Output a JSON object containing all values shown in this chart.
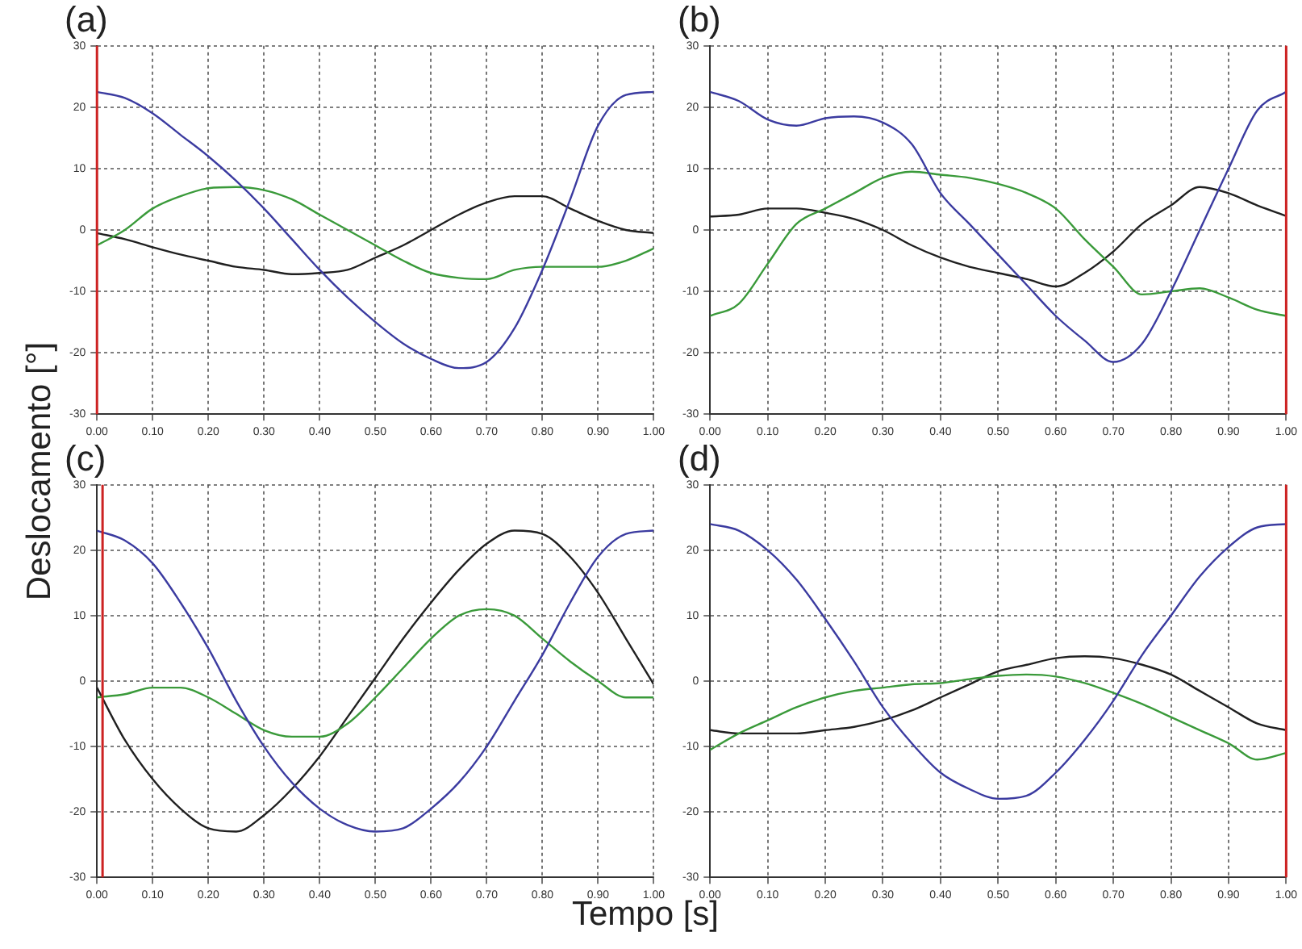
{
  "chart_data": [
    {
      "type": "line",
      "title": "(a)",
      "ylabel": "Deslocamento  [°]",
      "x": [
        0,
        0.05,
        0.1,
        0.15,
        0.2,
        0.25,
        0.3,
        0.35,
        0.4,
        0.45,
        0.5,
        0.55,
        0.6,
        0.65,
        0.7,
        0.75,
        0.8,
        0.85,
        0.9,
        0.95,
        1
      ],
      "series": [
        {
          "color": "#3b3ba0",
          "values": [
            22.5,
            21.5,
            19,
            15.5,
            12,
            8,
            3.5,
            -1.5,
            -6.5,
            -11,
            -15,
            -18.5,
            -21,
            -22.5,
            -21.5,
            -16,
            -6.5,
            5,
            17,
            22,
            22.5
          ]
        },
        {
          "color": "#3a9a3a",
          "values": [
            -2.5,
            0,
            3.5,
            5.5,
            6.8,
            7,
            6.5,
            5,
            2.5,
            0,
            -2.5,
            -5,
            -7,
            -7.8,
            -8,
            -6.5,
            -6,
            -6,
            -6,
            -5,
            -3
          ]
        },
        {
          "color": "#202020",
          "values": [
            -0.5,
            -1.5,
            -2.8,
            -4,
            -5,
            -6,
            -6.5,
            -7.2,
            -7,
            -6.5,
            -4.5,
            -2.5,
            0,
            2.5,
            4.5,
            5.5,
            5.5,
            3.5,
            1.5,
            0,
            -0.5
          ]
        }
      ],
      "xlim": [
        0,
        1
      ],
      "ylim": [
        -30,
        30
      ],
      "xticks": [
        {
          "value": 0,
          "label": "0.00"
        },
        {
          "value": 0.1,
          "label": "0.10"
        },
        {
          "value": 0.2,
          "label": "0.20"
        },
        {
          "value": 0.3,
          "label": "0.30"
        },
        {
          "value": 0.4,
          "label": "0.40"
        },
        {
          "value": 0.5,
          "label": "0.50"
        },
        {
          "value": 0.6,
          "label": "0.60"
        },
        {
          "value": 0.7,
          "label": "0.70"
        },
        {
          "value": 0.8,
          "label": "0.80"
        },
        {
          "value": 0.9,
          "label": "0.90"
        },
        {
          "value": 1,
          "label": "1.00"
        }
      ],
      "yticks": [
        -30,
        -20,
        -10,
        0,
        10,
        20,
        30
      ],
      "ref_lines": [
        {
          "axis": "x",
          "value": 0,
          "color": "#cc2222"
        }
      ],
      "grid": true,
      "legend": false,
      "marker": "none"
    },
    {
      "type": "line",
      "title": "(b)",
      "x": [
        0,
        0.05,
        0.1,
        0.15,
        0.2,
        0.25,
        0.3,
        0.35,
        0.4,
        0.45,
        0.5,
        0.55,
        0.6,
        0.65,
        0.7,
        0.75,
        0.8,
        0.85,
        0.9,
        0.95,
        1
      ],
      "series": [
        {
          "color": "#3b3ba0",
          "values": [
            22.5,
            21,
            18,
            17,
            18.2,
            18.5,
            17.5,
            14,
            6,
            1,
            -4,
            -9,
            -14,
            -18,
            -21.5,
            -18.5,
            -10,
            0,
            10,
            19.5,
            22.5
          ]
        },
        {
          "color": "#3a9a3a",
          "values": [
            -14,
            -12,
            -5.5,
            1,
            3.5,
            6,
            8.5,
            9.5,
            9,
            8.5,
            7.5,
            6,
            3.5,
            -1.5,
            -6,
            -10.5,
            -10,
            -9.5,
            -11,
            -13,
            -14
          ]
        },
        {
          "color": "#202020",
          "values": [
            2.2,
            2.5,
            3.5,
            3.5,
            2.8,
            1.8,
            0,
            -2.5,
            -4.5,
            -6,
            -7,
            -8,
            -9.2,
            -7,
            -3.5,
            1,
            4,
            7,
            6,
            4,
            2.3
          ]
        }
      ],
      "xlim": [
        0,
        1
      ],
      "ylim": [
        -30,
        30
      ],
      "xticks": [
        {
          "value": 0,
          "label": "0.00"
        },
        {
          "value": 0.1,
          "label": "0.10"
        },
        {
          "value": 0.2,
          "label": "0.20"
        },
        {
          "value": 0.3,
          "label": "0.30"
        },
        {
          "value": 0.4,
          "label": "0.40"
        },
        {
          "value": 0.5,
          "label": "0.50"
        },
        {
          "value": 0.6,
          "label": "0.60"
        },
        {
          "value": 0.7,
          "label": "0.70"
        },
        {
          "value": 0.8,
          "label": "0.80"
        },
        {
          "value": 0.9,
          "label": "0.90"
        },
        {
          "value": 1,
          "label": "1.00"
        }
      ],
      "yticks": [
        -30,
        -20,
        -10,
        0,
        10,
        20,
        30
      ],
      "ref_lines": [
        {
          "axis": "x",
          "value": 1,
          "color": "#cc2222"
        }
      ],
      "grid": true,
      "legend": false,
      "marker": "none"
    },
    {
      "type": "line",
      "title": "(c)",
      "xlabel": "Tempo [s]",
      "x": [
        0,
        0.05,
        0.1,
        0.15,
        0.2,
        0.25,
        0.3,
        0.35,
        0.4,
        0.45,
        0.5,
        0.55,
        0.6,
        0.65,
        0.7,
        0.75,
        0.8,
        0.85,
        0.9,
        0.95,
        1
      ],
      "series": [
        {
          "color": "#3b3ba0",
          "values": [
            23,
            21.5,
            18,
            12,
            5,
            -3,
            -10,
            -15.5,
            -19.5,
            -22,
            -23,
            -22.5,
            -19.5,
            -15.5,
            -10,
            -3,
            4,
            12,
            19,
            22.5,
            23
          ]
        },
        {
          "color": "#3a9a3a",
          "values": [
            -2.5,
            -2,
            -1,
            -1,
            -2.5,
            -5,
            -7.5,
            -8.5,
            -8.5,
            -6.5,
            -2.5,
            2,
            6.5,
            10,
            11,
            10,
            6.5,
            3,
            0,
            -2.5,
            -2.5
          ]
        },
        {
          "color": "#202020",
          "values": [
            -1,
            -9,
            -15,
            -19.5,
            -22.5,
            -23,
            -20.5,
            -16.5,
            -11.5,
            -5.5,
            0.5,
            6.5,
            12,
            17,
            21,
            23,
            22.5,
            19,
            13.5,
            6.5,
            -0.5
          ]
        }
      ],
      "xlim": [
        0,
        1
      ],
      "ylim": [
        -30,
        30
      ],
      "xticks": [
        {
          "value": 0,
          "label": "0.00"
        },
        {
          "value": 0.1,
          "label": "0.10"
        },
        {
          "value": 0.2,
          "label": "0.20"
        },
        {
          "value": 0.3,
          "label": "0.30"
        },
        {
          "value": 0.4,
          "label": "0.40"
        },
        {
          "value": 0.5,
          "label": "0.50"
        },
        {
          "value": 0.6,
          "label": "0.60"
        },
        {
          "value": 0.7,
          "label": "0.70"
        },
        {
          "value": 0.8,
          "label": "0.80"
        },
        {
          "value": 0.9,
          "label": "0.90"
        },
        {
          "value": 1,
          "label": "1.00"
        }
      ],
      "yticks": [
        -30,
        -20,
        -10,
        0,
        10,
        20,
        30
      ],
      "ref_lines": [
        {
          "axis": "x",
          "value": 0.01,
          "color": "#cc2222"
        }
      ],
      "grid": true,
      "legend": false,
      "marker": "none"
    },
    {
      "type": "line",
      "title": "(d)",
      "x": [
        0,
        0.05,
        0.1,
        0.15,
        0.2,
        0.25,
        0.3,
        0.35,
        0.4,
        0.45,
        0.5,
        0.55,
        0.6,
        0.65,
        0.7,
        0.75,
        0.8,
        0.85,
        0.9,
        0.95,
        1
      ],
      "series": [
        {
          "color": "#3b3ba0",
          "values": [
            24,
            23,
            20,
            15.5,
            9.5,
            3,
            -4,
            -9.5,
            -14,
            -16.5,
            -18,
            -17.5,
            -14,
            -9,
            -3,
            4,
            10,
            16,
            20.5,
            23.5,
            24
          ]
        },
        {
          "color": "#3a9a3a",
          "values": [
            -10.5,
            -8,
            -6,
            -4,
            -2.5,
            -1.5,
            -1,
            -0.5,
            -0.3,
            0.3,
            0.8,
            1,
            0.7,
            -0.3,
            -1.8,
            -3.5,
            -5.5,
            -7.5,
            -9.5,
            -12,
            -11
          ]
        },
        {
          "color": "#202020",
          "values": [
            -7.5,
            -8,
            -8,
            -8,
            -7.5,
            -7,
            -6,
            -4.5,
            -2.5,
            -0.5,
            1.5,
            2.5,
            3.5,
            3.8,
            3.5,
            2.5,
            1,
            -1.5,
            -4,
            -6.5,
            -7.5
          ]
        }
      ],
      "xlim": [
        0,
        1
      ],
      "ylim": [
        -30,
        30
      ],
      "xticks": [
        {
          "value": 0,
          "label": "0.00"
        },
        {
          "value": 0.1,
          "label": "0.10"
        },
        {
          "value": 0.2,
          "label": "0.20"
        },
        {
          "value": 0.3,
          "label": "0.30"
        },
        {
          "value": 0.4,
          "label": "0.40"
        },
        {
          "value": 0.5,
          "label": "0.50"
        },
        {
          "value": 0.6,
          "label": "0.60"
        },
        {
          "value": 0.7,
          "label": "0.70"
        },
        {
          "value": 0.8,
          "label": "0.80"
        },
        {
          "value": 0.9,
          "label": "0.90"
        },
        {
          "value": 1,
          "label": "1.00"
        }
      ],
      "yticks": [
        -30,
        -20,
        -10,
        0,
        10,
        20,
        30
      ],
      "ref_lines": [
        {
          "axis": "x",
          "value": 1,
          "color": "#cc2222"
        }
      ],
      "grid": true,
      "legend": false,
      "marker": "none"
    }
  ]
}
